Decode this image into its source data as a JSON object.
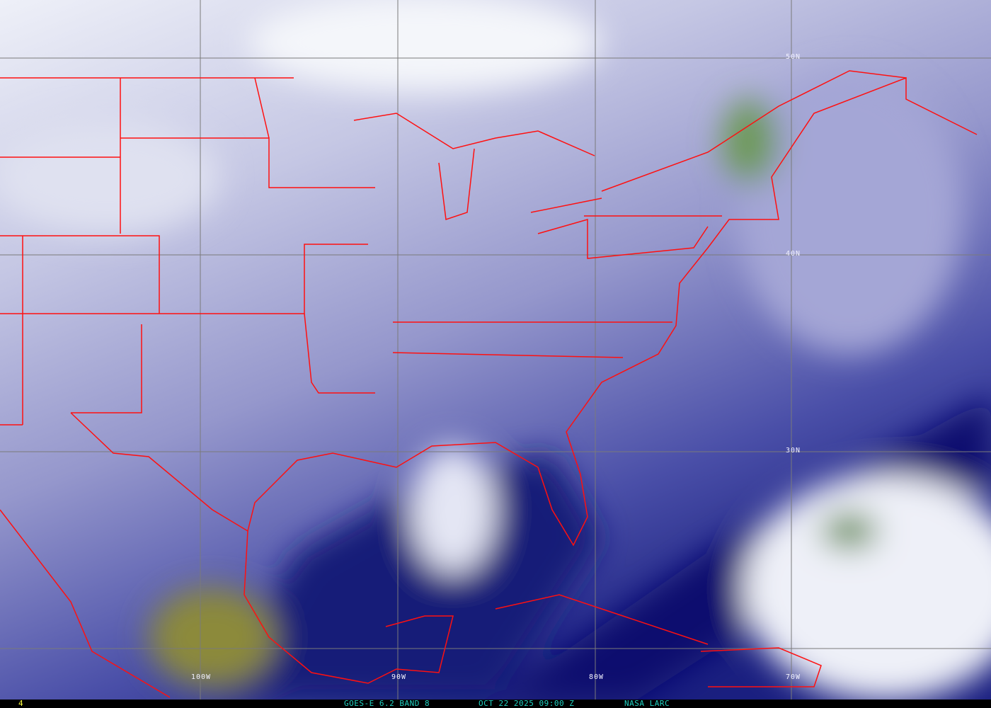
{
  "image": {
    "type": "satellite water vapor imagery",
    "colors": {
      "dry": "#0a0f6e",
      "mid": "#9a9cd0",
      "moist": "#eef0f8",
      "cold_cloud": "#5d8a4a",
      "warm_dry": "#8c8a3a",
      "boundaries": "#ff1010",
      "grid": "#7a7a7a"
    }
  },
  "grid_labels": {
    "lat": [
      "50N",
      "40N",
      "30N"
    ],
    "lon": [
      "100W",
      "90W",
      "80W",
      "70W"
    ]
  },
  "footer": {
    "frame": "4",
    "product": "GOES-E 6.2 BAND 8",
    "datetime": "OCT 22 2025 09:00 Z",
    "source": "NASA LARC"
  }
}
